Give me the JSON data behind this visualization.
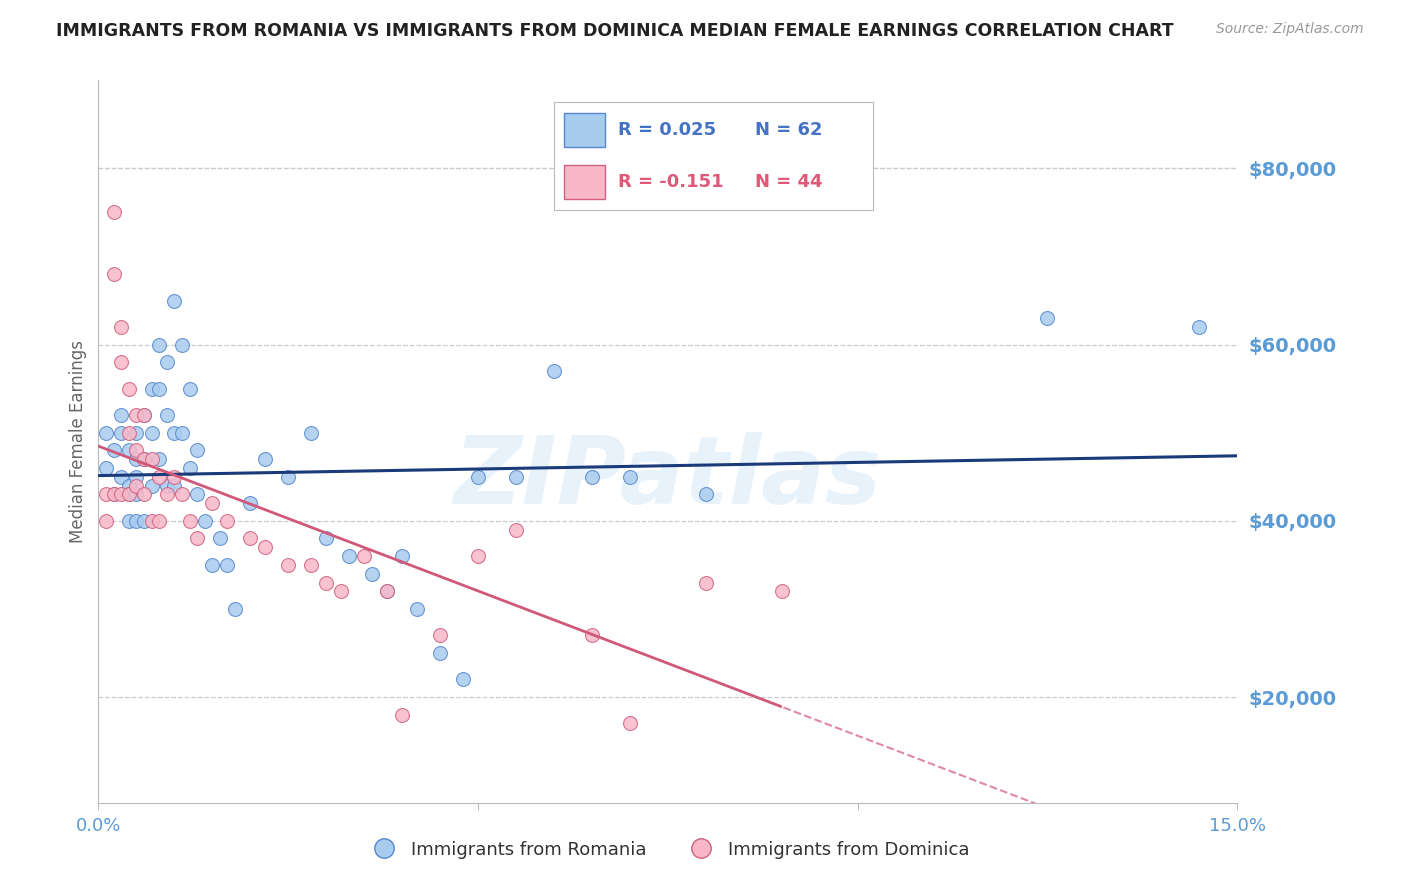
{
  "title": "IMMIGRANTS FROM ROMANIA VS IMMIGRANTS FROM DOMINICA MEDIAN FEMALE EARNINGS CORRELATION CHART",
  "source": "Source: ZipAtlas.com",
  "ylabel": "Median Female Earnings",
  "xlim": [
    0.0,
    0.15
  ],
  "ylim": [
    8000,
    90000
  ],
  "yticks": [
    20000,
    40000,
    60000,
    80000
  ],
  "xticks": [
    0.0,
    0.05,
    0.1,
    0.15
  ],
  "xtick_labels": [
    "0.0%",
    "",
    "",
    "15.0%"
  ],
  "romania": {
    "name": "Immigrants from Romania",
    "R": 0.025,
    "N": 62,
    "dot_color": "#A8CCEE",
    "edge_color": "#5588CC",
    "line_color": "#1A3A7A",
    "x": [
      0.001,
      0.001,
      0.002,
      0.002,
      0.003,
      0.003,
      0.003,
      0.004,
      0.004,
      0.004,
      0.004,
      0.005,
      0.005,
      0.005,
      0.005,
      0.005,
      0.006,
      0.006,
      0.006,
      0.007,
      0.007,
      0.007,
      0.008,
      0.008,
      0.008,
      0.009,
      0.009,
      0.009,
      0.01,
      0.01,
      0.01,
      0.011,
      0.011,
      0.012,
      0.012,
      0.013,
      0.013,
      0.014,
      0.015,
      0.016,
      0.017,
      0.018,
      0.02,
      0.022,
      0.025,
      0.028,
      0.03,
      0.033,
      0.036,
      0.038,
      0.04,
      0.042,
      0.045,
      0.048,
      0.05,
      0.055,
      0.06,
      0.065,
      0.07,
      0.08,
      0.125,
      0.145
    ],
    "y": [
      50000,
      46000,
      48000,
      43000,
      52000,
      45000,
      50000,
      48000,
      44000,
      43000,
      40000,
      50000,
      47000,
      45000,
      40000,
      43000,
      52000,
      47000,
      40000,
      55000,
      50000,
      44000,
      60000,
      55000,
      47000,
      58000,
      52000,
      44000,
      65000,
      50000,
      44000,
      60000,
      50000,
      55000,
      46000,
      48000,
      43000,
      40000,
      35000,
      38000,
      35000,
      30000,
      42000,
      47000,
      45000,
      50000,
      38000,
      36000,
      34000,
      32000,
      36000,
      30000,
      25000,
      22000,
      45000,
      45000,
      57000,
      45000,
      45000,
      43000,
      63000,
      62000
    ]
  },
  "dominica": {
    "name": "Immigrants from Dominica",
    "R": -0.151,
    "N": 44,
    "dot_color": "#F8B8C8",
    "edge_color": "#D06080",
    "line_color": "#D05878",
    "x": [
      0.001,
      0.001,
      0.002,
      0.002,
      0.002,
      0.003,
      0.003,
      0.003,
      0.004,
      0.004,
      0.004,
      0.005,
      0.005,
      0.005,
      0.006,
      0.006,
      0.006,
      0.007,
      0.007,
      0.008,
      0.008,
      0.009,
      0.01,
      0.011,
      0.012,
      0.013,
      0.015,
      0.017,
      0.02,
      0.022,
      0.025,
      0.028,
      0.03,
      0.032,
      0.035,
      0.038,
      0.04,
      0.045,
      0.05,
      0.055,
      0.065,
      0.07,
      0.08,
      0.09
    ],
    "y": [
      43000,
      40000,
      75000,
      68000,
      43000,
      62000,
      58000,
      43000,
      55000,
      50000,
      43000,
      52000,
      48000,
      44000,
      52000,
      47000,
      43000,
      47000,
      40000,
      45000,
      40000,
      43000,
      45000,
      43000,
      40000,
      38000,
      42000,
      40000,
      38000,
      37000,
      35000,
      35000,
      33000,
      32000,
      36000,
      32000,
      18000,
      27000,
      36000,
      39000,
      27000,
      17000,
      33000,
      32000
    ]
  },
  "watermark_text": "ZIPatlas",
  "bg_color": "#FFFFFF",
  "grid_color": "#CCCCCC",
  "title_color": "#222222",
  "axis_tick_color": "#5B9BD5",
  "ylabel_color": "#666666",
  "legend_text_color_romania": "#4472C4",
  "legend_text_color_dominica": "#E05878"
}
